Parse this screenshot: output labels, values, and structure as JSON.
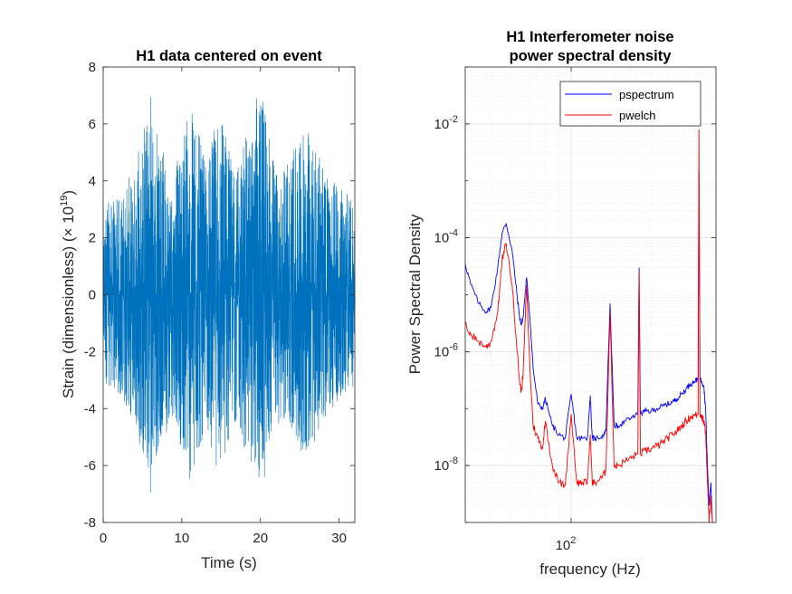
{
  "chart_data": [
    {
      "type": "line",
      "title": "H1 data centered on event",
      "xlabel": "Time (s)",
      "ylabel": "Strain (dimensionless) (× 10",
      "ylabel_exponent": "19",
      "ylabel_close": ")",
      "xlim": [
        0,
        32
      ],
      "ylim": [
        -8,
        8
      ],
      "xticks": [
        0,
        10,
        20,
        30
      ],
      "xtick_labels": [
        "0",
        "10",
        "20",
        "30"
      ],
      "yticks": [
        -8,
        -6,
        -4,
        -2,
        0,
        2,
        4,
        6,
        8
      ],
      "ytick_labels": [
        "-8",
        "-6",
        "-4",
        "-2",
        "0",
        "2",
        "4",
        "6",
        "8"
      ],
      "grid": false,
      "series": [
        {
          "color": "#0072BD",
          "description": "dense noise-like strain time series, amplitude mostly within ±4, peaks near +7.7 and -7",
          "envelope": {
            "t": [
              0,
              2,
              4,
              5.5,
              6,
              7,
              8,
              9,
              10,
              11,
              12,
              13,
              14,
              15,
              16,
              17,
              18,
              19,
              20,
              21,
              22,
              23,
              24,
              25,
              26,
              27,
              28,
              29,
              30,
              31,
              32
            ],
            "upper": [
              3.2,
              3.5,
              4.5,
              6.5,
              7.2,
              5.5,
              5.0,
              4.2,
              5.5,
              6.6,
              6.0,
              4.5,
              6.0,
              6.7,
              5.2,
              4.5,
              5.5,
              6.3,
              7.7,
              5.8,
              4.6,
              4.5,
              5.0,
              5.6,
              6.0,
              5.3,
              4.5,
              4.2,
              3.8,
              3.6,
              3.3
            ],
            "lower": [
              -3.0,
              -3.5,
              -4.5,
              -6.2,
              -6.8,
              -5.3,
              -4.8,
              -4.2,
              -5.5,
              -6.6,
              -6.0,
              -4.5,
              -5.5,
              -6.4,
              -5.0,
              -4.2,
              -5.5,
              -5.8,
              -7.0,
              -5.6,
              -4.6,
              -4.3,
              -4.8,
              -5.5,
              -5.8,
              -5.0,
              -4.3,
              -4.0,
              -3.6,
              -3.4,
              -3.0
            ]
          }
        }
      ]
    },
    {
      "type": "line",
      "title": [
        "H1 Interferometer noise",
        "power spectral density"
      ],
      "xlabel": "frequency (Hz)",
      "ylabel": "Power Spectral Density",
      "xscale": "log",
      "yscale": "log",
      "xlim": [
        40,
        350
      ],
      "ylim": [
        1e-09,
        0.1
      ],
      "xtick_labels": [
        {
          "base": "10",
          "exp": "2",
          "value": 100
        }
      ],
      "ytick_labels": [
        {
          "base": "10",
          "exp": "-8",
          "value": 1e-08
        },
        {
          "base": "10",
          "exp": "-6",
          "value": 1e-06
        },
        {
          "base": "10",
          "exp": "-4",
          "value": 0.0001
        },
        {
          "base": "10",
          "exp": "-2",
          "value": 0.01
        }
      ],
      "grid": true,
      "minor_grid": true,
      "legend": {
        "position": "top-right",
        "entries": [
          "pspectrum",
          "pwelch"
        ]
      },
      "series": [
        {
          "name": "pspectrum",
          "color": "#0000FF",
          "x": [
            40,
            42,
            45,
            48,
            50,
            53,
            55,
            57,
            60,
            62,
            64,
            65,
            66,
            68,
            70,
            72,
            75,
            78,
            80,
            85,
            90,
            95,
            100,
            105,
            110,
            115,
            118,
            120,
            123,
            130,
            135,
            140,
            145,
            150,
            160,
            170,
            178,
            180,
            182,
            190,
            200,
            210,
            220,
            230,
            240,
            250,
            260,
            270,
            280,
            290,
            300,
            302,
            305,
            310,
            315,
            320,
            325,
            330,
            335,
            340,
            345,
            350
          ],
          "y": [
            3.5e-05,
            1.5e-05,
            7e-06,
            5e-06,
            6e-06,
            3e-05,
            0.00012,
            0.00018,
            6e-05,
            1.5e-05,
            4e-06,
            3e-06,
            4e-06,
            2e-05,
            4e-06,
            5e-07,
            1.2e-07,
            1e-07,
            1.5e-07,
            5e-08,
            3.5e-08,
            3e-08,
            1.8e-07,
            3e-08,
            3e-08,
            3e-08,
            1.7e-07,
            3e-08,
            3e-08,
            3.2e-08,
            4e-08,
            7e-06,
            5e-08,
            5e-08,
            6e-08,
            7e-08,
            8e-08,
            3e-05,
            8e-08,
            9e-08,
            9e-08,
            1e-07,
            1.1e-07,
            1.2e-07,
            1.3e-07,
            1.5e-07,
            1.8e-07,
            2.2e-07,
            2.7e-07,
            3e-07,
            3.3e-07,
            0.0015,
            3.3e-07,
            3e-07,
            2.5e-07,
            1e-07,
            1e-08,
            2e-09,
            5e-09,
            8e-10,
            8e-10,
            8e-10
          ]
        },
        {
          "name": "pwelch",
          "color": "#FF0000",
          "x": [
            40,
            42,
            45,
            48,
            50,
            53,
            55,
            57,
            60,
            62,
            64,
            65,
            66,
            68,
            70,
            72,
            75,
            78,
            80,
            85,
            90,
            95,
            100,
            105,
            110,
            115,
            118,
            120,
            123,
            130,
            135,
            140,
            145,
            150,
            160,
            170,
            178,
            180,
            182,
            190,
            200,
            210,
            220,
            230,
            240,
            250,
            260,
            270,
            280,
            290,
            300,
            302,
            305,
            310,
            315,
            320,
            325,
            330,
            335,
            340,
            345,
            350
          ],
          "y": [
            3e-06,
            2e-06,
            1.5e-06,
            1.2e-06,
            1.5e-06,
            5e-06,
            4e-05,
            8e-05,
            1.5e-05,
            2e-06,
            3e-07,
            2e-07,
            4e-07,
            1.5e-05,
            5e-07,
            5e-08,
            3e-08,
            2e-08,
            6e-08,
            1e-08,
            5e-09,
            4.5e-09,
            8e-08,
            5e-09,
            5e-09,
            5e-09,
            3.5e-08,
            5e-09,
            5e-09,
            6e-09,
            8e-09,
            5e-06,
            1e-08,
            1e-08,
            1.2e-08,
            1.4e-08,
            1.6e-08,
            2.5e-05,
            1.6e-08,
            1.8e-08,
            2e-08,
            2.2e-08,
            2.5e-08,
            3e-08,
            3.5e-08,
            4e-08,
            5e-08,
            6e-08,
            7e-08,
            7.5e-08,
            8e-08,
            0.008,
            8e-08,
            7e-08,
            6e-08,
            4e-08,
            5e-09,
            1e-09,
            3e-09,
            8e-10,
            8e-10,
            8e-10
          ]
        }
      ]
    }
  ]
}
